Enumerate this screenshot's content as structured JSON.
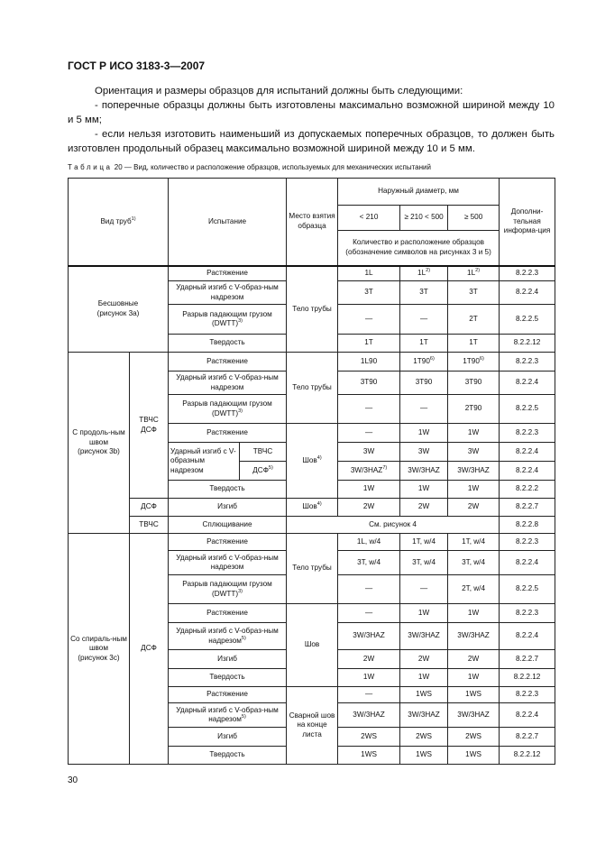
{
  "header": "ГОСТ Р ИСО 3183-3—2007",
  "paragraphs": [
    "Ориентация и размеры образцов для испытаний должны быть следующими:",
    "- поперечные образцы должны быть изготовлены максимально возможной шириной между 10 и 5 мм;",
    "- если нельзя изготовить наименьший из допускаемых поперечных образцов, то должен быть изготовлен продольный образец максимально возможной шириной между 10 и 5 мм."
  ],
  "caption": {
    "label": "Таблица",
    "rest": " 20 — Вид, количество и расположение образцов, используемых для механических испытаний"
  },
  "table": {
    "head": {
      "type": "Вид труб",
      "type_sup": "1)",
      "test": "Испытание",
      "place": "Место взятия образца",
      "diameter": "Наружный диаметр, мм",
      "d1": "< 210",
      "d2": "≥ 210 < 500",
      "d3": "≥ 500",
      "info": "Дополни-тельная информа-ция",
      "qty": "Количество и расположение образцов (обозначение символов на рисунках 3 и 5)"
    },
    "types": [
      {
        "label": "Бесшовные",
        "figure": "(рисунок 3a)"
      },
      {
        "label": "С продоль-ным швом",
        "figure": "(рисунок 3b)"
      },
      {
        "label": "Со спираль-ным швом",
        "figure": "(рисунок 3c)"
      }
    ],
    "subtypes": [
      "ТВЧС ДСФ",
      "ДСФ",
      "ТВЧС",
      "ДСФ"
    ],
    "places": [
      {
        "t": "Тело трубы"
      },
      {
        "t": "Тело трубы"
      },
      {
        "t": "Шов",
        "sup": "4)"
      },
      {
        "t": "Шов",
        "sup": "4)"
      },
      {
        "t": "Тело трубы"
      },
      {
        "t": "Шов"
      },
      {
        "t": "Сварной шов на конце листа"
      }
    ],
    "span_text": "См. рисунок 4",
    "rows": [
      {
        "test": "Растяжение",
        "v": [
          "1L",
          "1L",
          "1L"
        ],
        "s": [
          "",
          "2)",
          "2)"
        ],
        "info": "8.2.2.3"
      },
      {
        "test": "Ударный изгиб с V-образ-ным надрезом",
        "v": [
          "3T",
          "3T",
          "3T"
        ],
        "s": [
          "",
          "",
          ""
        ],
        "info": "8.2.2.4"
      },
      {
        "test": "Разрыв падающим грузом (DWTT)",
        "test_sup": "3)",
        "v": [
          "—",
          "—",
          "2T"
        ],
        "s": [
          "",
          "",
          ""
        ],
        "info": "8.2.2.5"
      },
      {
        "test": "Твердость",
        "v": [
          "1T",
          "1T",
          "1T"
        ],
        "s": [
          "",
          "",
          ""
        ],
        "info": "8.2.2.12"
      },
      {
        "test": "Растяжение",
        "v": [
          "1L90",
          "1T90",
          "1T90"
        ],
        "s": [
          "",
          "6)",
          "6)"
        ],
        "info": "8.2.2.3"
      },
      {
        "test": "Ударный изгиб с V-образ-ным надрезом",
        "v": [
          "3T90",
          "3T90",
          "3T90"
        ],
        "s": [
          "",
          "",
          ""
        ],
        "info": "8.2.2.4"
      },
      {
        "test": "Разрыв падающим грузом (DWTT)",
        "test_sup": "3)",
        "v": [
          "—",
          "—",
          "2T90"
        ],
        "s": [
          "",
          "",
          ""
        ],
        "info": "8.2.2.5"
      },
      {
        "test": "Растяжение",
        "v": [
          "—",
          "1W",
          "1W"
        ],
        "s": [
          "",
          "",
          ""
        ],
        "info": "8.2.2.3"
      },
      {
        "test": "Ударный изгиб с V-образным надрезом",
        "sub": "ТВЧС",
        "v": [
          "3W",
          "3W",
          "3W"
        ],
        "s": [
          "",
          "",
          ""
        ],
        "info": "8.2.2.4"
      },
      {
        "sub": "ДСФ",
        "sub_sup": "5)",
        "v": [
          "3W/3HAZ",
          "3W/3HAZ",
          "3W/3HAZ"
        ],
        "s": [
          "7)",
          "",
          ""
        ],
        "info": "8.2.2.4"
      },
      {
        "test": "Твердость",
        "v": [
          "1W",
          "1W",
          "1W"
        ],
        "s": [
          "",
          "",
          ""
        ],
        "info": "8.2.2.2"
      },
      {
        "test": "Изгиб",
        "v": [
          "2W",
          "2W",
          "2W"
        ],
        "s": [
          "",
          "",
          ""
        ],
        "info": "8.2.2.7"
      },
      {
        "test": "Сплющивание",
        "info": "8.2.2.8"
      },
      {
        "test": "Растяжение",
        "v": [
          "1L, w/4",
          "1T, w/4",
          "1T, w/4"
        ],
        "s": [
          "",
          "",
          ""
        ],
        "info": "8.2.2.3"
      },
      {
        "test": "Ударный изгиб с V-образ-ным надрезом",
        "v": [
          "3T, w/4",
          "3T, w/4",
          "3T, w/4"
        ],
        "s": [
          "",
          "",
          ""
        ],
        "info": "8.2.2.4"
      },
      {
        "test": "Разрыв падающим грузом (DWTT)",
        "test_sup": "3)",
        "v": [
          "—",
          "—",
          "2T, w/4"
        ],
        "s": [
          "",
          "",
          ""
        ],
        "info": "8.2.2.5"
      },
      {
        "test": "Растяжение",
        "v": [
          "—",
          "1W",
          "1W"
        ],
        "s": [
          "",
          "",
          ""
        ],
        "info": "8.2.2.3"
      },
      {
        "test": "Ударный изгиб с V-образ-ным надрезом",
        "test_sup": "5)",
        "v": [
          "3W/3HAZ",
          "3W/3HAZ",
          "3W/3HAZ"
        ],
        "s": [
          "",
          "",
          ""
        ],
        "info": "8.2.2.4"
      },
      {
        "test": "Изгиб",
        "v": [
          "2W",
          "2W",
          "2W"
        ],
        "s": [
          "",
          "",
          ""
        ],
        "info": "8.2.2.7"
      },
      {
        "test": "Твердость",
        "v": [
          "1W",
          "1W",
          "1W"
        ],
        "s": [
          "",
          "",
          ""
        ],
        "info": "8.2.2.12"
      },
      {
        "test": "Растяжение",
        "v": [
          "—",
          "1WS",
          "1WS"
        ],
        "s": [
          "",
          "",
          ""
        ],
        "info": "8.2.2.3"
      },
      {
        "test": "Ударный изгиб с V-образ-ным надрезом",
        "test_sup": "5)",
        "v": [
          "3W/3HAZ",
          "3W/3HAZ",
          "3W/3HAZ"
        ],
        "s": [
          "",
          "",
          ""
        ],
        "info": "8.2.2.4"
      },
      {
        "test": "Изгиб",
        "v": [
          "2WS",
          "2WS",
          "2WS"
        ],
        "s": [
          "",
          "",
          ""
        ],
        "info": "8.2.2.7"
      },
      {
        "test": "Твердость",
        "v": [
          "1WS",
          "1WS",
          "1WS"
        ],
        "s": [
          "",
          "",
          ""
        ],
        "info": "8.2.2.12"
      }
    ]
  },
  "page_number": "30"
}
